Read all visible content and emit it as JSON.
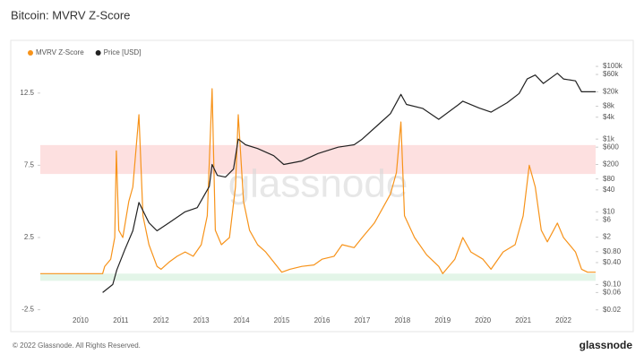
{
  "chart_data": {
    "type": "line",
    "title": "Bitcoin: MVRV Z-Score",
    "watermark": "glassnode",
    "series": [
      {
        "name": "MVRV Z-Score",
        "color": "#f7931a",
        "axis": "y",
        "x": [
          2009.0,
          2010.55,
          2010.6,
          2010.75,
          2010.85,
          2010.89,
          2010.95,
          2011.05,
          2011.2,
          2011.3,
          2011.45,
          2011.55,
          2011.7,
          2011.9,
          2012.0,
          2012.2,
          2012.4,
          2012.6,
          2012.8,
          2013.0,
          2013.15,
          2013.27,
          2013.35,
          2013.5,
          2013.7,
          2013.85,
          2013.92,
          2014.05,
          2014.2,
          2014.4,
          2014.6,
          2014.8,
          2015.0,
          2015.2,
          2015.5,
          2015.8,
          2016.0,
          2016.3,
          2016.5,
          2016.8,
          2017.0,
          2017.3,
          2017.5,
          2017.7,
          2017.85,
          2017.96,
          2018.05,
          2018.3,
          2018.6,
          2018.9,
          2019.0,
          2019.3,
          2019.5,
          2019.7,
          2020.0,
          2020.2,
          2020.5,
          2020.8,
          2021.0,
          2021.15,
          2021.3,
          2021.45,
          2021.6,
          2021.85,
          2022.0,
          2022.3,
          2022.45,
          2022.6,
          2022.8
        ],
        "values": [
          0,
          0,
          0.5,
          1,
          2.5,
          8.5,
          3,
          2.5,
          5,
          6,
          11,
          4,
          2,
          0.5,
          0.3,
          0.8,
          1.2,
          1.5,
          1.2,
          2,
          4,
          12.8,
          3,
          2,
          2.5,
          6,
          11,
          5,
          3,
          2,
          1.5,
          0.8,
          0.1,
          0.3,
          0.5,
          0.6,
          1,
          1.2,
          2,
          1.8,
          2.5,
          3.5,
          4.5,
          5.5,
          7,
          10.5,
          4,
          2.5,
          1.3,
          0.5,
          0,
          1,
          2.5,
          1.5,
          1,
          0.3,
          1.5,
          2,
          4,
          7.5,
          6,
          3,
          2.2,
          3.5,
          2.5,
          1.5,
          0.3,
          0.1,
          0.1
        ]
      },
      {
        "name": "Price [USD]",
        "color": "#222222",
        "axis": "y2",
        "x": [
          2010.55,
          2010.8,
          2010.9,
          2011.1,
          2011.3,
          2011.45,
          2011.7,
          2011.9,
          2012.2,
          2012.6,
          2012.9,
          2013.2,
          2013.27,
          2013.4,
          2013.6,
          2013.8,
          2013.92,
          2014.1,
          2014.4,
          2014.8,
          2015.05,
          2015.5,
          2015.9,
          2016.4,
          2016.8,
          2017.0,
          2017.4,
          2017.7,
          2017.96,
          2018.1,
          2018.5,
          2018.9,
          2019.4,
          2019.5,
          2019.9,
          2020.2,
          2020.6,
          2020.9,
          2021.1,
          2021.3,
          2021.5,
          2021.85,
          2022.0,
          2022.3,
          2022.45,
          2022.8
        ],
        "values": [
          0.06,
          0.1,
          0.25,
          0.9,
          3,
          18,
          5,
          3,
          5,
          10,
          13,
          50,
          200,
          100,
          90,
          150,
          1000,
          700,
          550,
          350,
          200,
          250,
          400,
          600,
          700,
          1000,
          2500,
          5000,
          17000,
          9000,
          7000,
          3500,
          9000,
          11000,
          7200,
          5500,
          10000,
          18000,
          45000,
          58000,
          34000,
          65000,
          45000,
          40000,
          20000,
          20000
        ]
      }
    ],
    "xlim": [
      2009,
      2022.8
    ],
    "xticks": [
      2010,
      2011,
      2012,
      2013,
      2014,
      2015,
      2016,
      2017,
      2018,
      2019,
      2020,
      2021,
      2022
    ],
    "ylim": [
      -2.9,
      14.6
    ],
    "yticks": [
      -2.5,
      2.5,
      7.5,
      12.5
    ],
    "y2lim": [
      0.014,
      126000
    ],
    "y2scale": "log",
    "y2ticks": [
      {
        "value": 0.02,
        "label": "$0.02"
      },
      {
        "value": 0.06,
        "label": "$0.06"
      },
      {
        "value": 0.1,
        "label": "$0.10"
      },
      {
        "value": 0.4,
        "label": "$0.40"
      },
      {
        "value": 0.8,
        "label": "$0.80"
      },
      {
        "value": 2,
        "label": "$2"
      },
      {
        "value": 6,
        "label": "$6"
      },
      {
        "value": 10,
        "label": "$10"
      },
      {
        "value": 40,
        "label": "$40"
      },
      {
        "value": 80,
        "label": "$80"
      },
      {
        "value": 200,
        "label": "$200"
      },
      {
        "value": 600,
        "label": "$600"
      },
      {
        "value": 1000,
        "label": "$1k"
      },
      {
        "value": 4000,
        "label": "$4k"
      },
      {
        "value": 8000,
        "label": "$8k"
      },
      {
        "value": 20000,
        "label": "$20k"
      },
      {
        "value": 60000,
        "label": "$60k"
      },
      {
        "value": 100000,
        "label": "$100k"
      }
    ],
    "bands": [
      {
        "from": 6.9,
        "to": 8.9,
        "color": "#fde0e0"
      },
      {
        "from": -0.5,
        "to": 0,
        "color": "#e3f5e8"
      }
    ],
    "grid": false
  },
  "footer": "© 2022 Glassnode. All Rights Reserved.",
  "logo": "glassnode"
}
